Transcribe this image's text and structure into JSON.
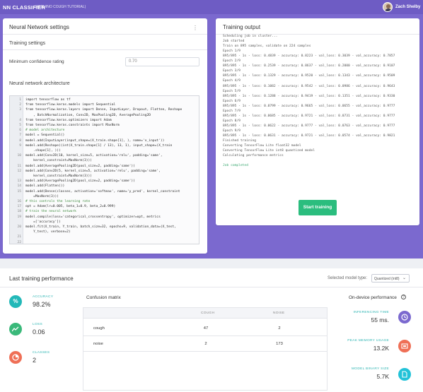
{
  "header": {
    "app_title": "NN CLASSIFIER",
    "app_subtitle": "(ARDUINO COUGH TUTORIAL)",
    "user_name": "Zach Shelby"
  },
  "nn_settings": {
    "card_title": "Neural Network settings",
    "menu_glyph": "⋮",
    "training_settings_label": "Training settings",
    "min_confidence_label": "Minimum confidence rating",
    "min_confidence_value": "0.70",
    "architecture_label": "Neural network architecture",
    "code_lines": [
      {
        "n": "1",
        "t": "import tensorflow as tf"
      },
      {
        "n": "2",
        "t": "from tensorflow.keras.models import Sequential"
      },
      {
        "n": "3",
        "t": "from tensorflow.keras.layers import Dense, InputLayer, Dropout, Flatten, Reshape"
      },
      {
        "n": "",
        "t": "    , BatchNormalization, Conv2D, MaxPooling2D, AveragePooling2D"
      },
      {
        "n": "4",
        "t": "from tensorflow.keras.optimizers import Adam"
      },
      {
        "n": "5",
        "t": "from tensorflow.keras.constraints import MaxNorm"
      },
      {
        "n": "6",
        "t": "# model architecture",
        "c": true
      },
      {
        "n": "7",
        "t": "model = Sequential()"
      },
      {
        "n": "8",
        "t": "model.add(InputLayer(input_shape=(X_train.shape[1], ), name='x_input'))"
      },
      {
        "n": "9",
        "t": "model.add(Reshape((int(X_train.shape[1] / 13), 13, 1), input_shape=(X_train"
      },
      {
        "n": "",
        "t": "    .shape[1], )))"
      },
      {
        "n": "10",
        "t": "model.add(Conv2D(10, kernel_size=5, activation='relu', padding='same',"
      },
      {
        "n": "",
        "t": "    kernel_constraint=MaxNorm(3)))"
      },
      {
        "n": "11",
        "t": "model.add(AveragePooling2D(pool_size=2, padding='same'))"
      },
      {
        "n": "12",
        "t": "model.add(Conv2D(5, kernel_size=5, activation='relu', padding='same',"
      },
      {
        "n": "",
        "t": "    kernel_constraint=MaxNorm(3)))"
      },
      {
        "n": "13",
        "t": "model.add(AveragePooling2D(pool_size=2, padding='same'))"
      },
      {
        "n": "14",
        "t": "model.add(Flatten())"
      },
      {
        "n": "15",
        "t": "model.add(Dense(classes, activation='softmax', name='y_pred', kernel_constraint"
      },
      {
        "n": "",
        "t": "    =MaxNorm(3)))"
      },
      {
        "n": "16",
        "t": "# this controls the learning rate",
        "c": true
      },
      {
        "n": "17",
        "t": "opt = Adam(lr=0.005, beta_1=0.9, beta_2=0.999)"
      },
      {
        "n": "18",
        "t": "# train the neural network",
        "c": true
      },
      {
        "n": "19",
        "t": "model.compile(loss='categorical_crossentropy', optimizer=opt, metrics"
      },
      {
        "n": "",
        "t": "    =['accuracy'])"
      },
      {
        "n": "20",
        "t": "model.fit(X_train, Y_train, batch_size=32, epochs=9, validation_data=(X_test,"
      },
      {
        "n": "",
        "t": "    Y_test), verbose=2)"
      },
      {
        "n": "21",
        "t": ""
      },
      {
        "n": "22",
        "t": ""
      }
    ]
  },
  "training_output": {
    "card_title": "Training output",
    "lines": [
      "Scheduling job in cluster...",
      "Job started",
      "Train on 895 samples, validate on 224 samples",
      "Epoch 1/9",
      "895/895 - 1s - loss: 0.4839 - accuracy: 0.8223 - val_loss: 0.3039 - val_accuracy: 0.7857",
      "Epoch 2/9",
      "895/895 - 1s - loss: 0.2539 - accuracy: 0.8637 - val_loss: 0.2000 - val_accuracy: 0.9107",
      "Epoch 3/9",
      "895/895 - 1s - loss: 0.1329 - accuracy: 0.9520 - val_loss: 0.1343 - val_accuracy: 0.9509",
      "Epoch 4/9",
      "895/895 - 1s - loss: 0.1082 - accuracy: 0.9542 - val_loss: 0.0986 - val_accuracy: 0.9643",
      "Epoch 5/9",
      "895/895 - 1s - loss: 0.1288 - accuracy: 0.9419 - val_loss: 0.1351 - val_accuracy: 0.9330",
      "Epoch 6/9",
      "895/895 - 1s - loss: 0.0799 - accuracy: 0.9665 - val_loss: 0.0655 - val_accuracy: 0.9777",
      "Epoch 7/9",
      "895/895 - 1s - loss: 0.0685 - accuracy: 0.9721 - val_loss: 0.0731 - val_accuracy: 0.9777",
      "Epoch 8/9",
      "895/895 - 1s - loss: 0.0622 - accuracy: 0.9777 - val_loss: 0.0763 - val_accuracy: 0.9777",
      "Epoch 9/9",
      "895/895 - 1s - loss: 0.0631 - accuracy: 0.9721 - val_loss: 0.0574 - val_accuracy: 0.9821",
      "Finished training",
      "Converting TensorFlow Lite float32 model",
      "Converting TensorFlow Lite int8 quantized model",
      "Calculating performance metrics",
      "",
      "Job completed"
    ],
    "start_button": "Start training"
  },
  "performance": {
    "title": "Last training performance",
    "model_type_label": "Selected model type:",
    "model_type_value": "Quantized (int8)",
    "accuracy_label": "ACCURACY",
    "accuracy_value": "98.2%",
    "loss_label": "LOSS",
    "loss_value": "0.06",
    "classes_label": "CLASSES",
    "classes_value": "2",
    "confusion_title": "Confusion matrix",
    "confusion": {
      "columns": [
        "COUGH",
        "NOISE"
      ],
      "rows": [
        {
          "label": "cough",
          "values": [
            "47",
            "2"
          ]
        },
        {
          "label": "noise",
          "values": [
            "2",
            "173"
          ]
        }
      ]
    },
    "on_device_title": "On-device performance",
    "inferencing_label": "INFERENCING TIME",
    "inferencing_value": "55 ms.",
    "ram_label": "PEAK MEMORY USAGE",
    "ram_value": "13.2K",
    "rom_label": "MODEL BINARY SIZE",
    "rom_value": "5.7K"
  },
  "colors": {
    "header_purple": "#6e5cc4",
    "band_purple": "#7b69cf",
    "start_green": "#2bbd7e",
    "accuracy_teal": "#22b8b8",
    "loss_green": "#3ab97a",
    "classes_red": "#ef6f56",
    "inference_purple": "#7b69cf",
    "ram_orange": "#ef6f56",
    "rom_cyan": "#22c2d8"
  }
}
